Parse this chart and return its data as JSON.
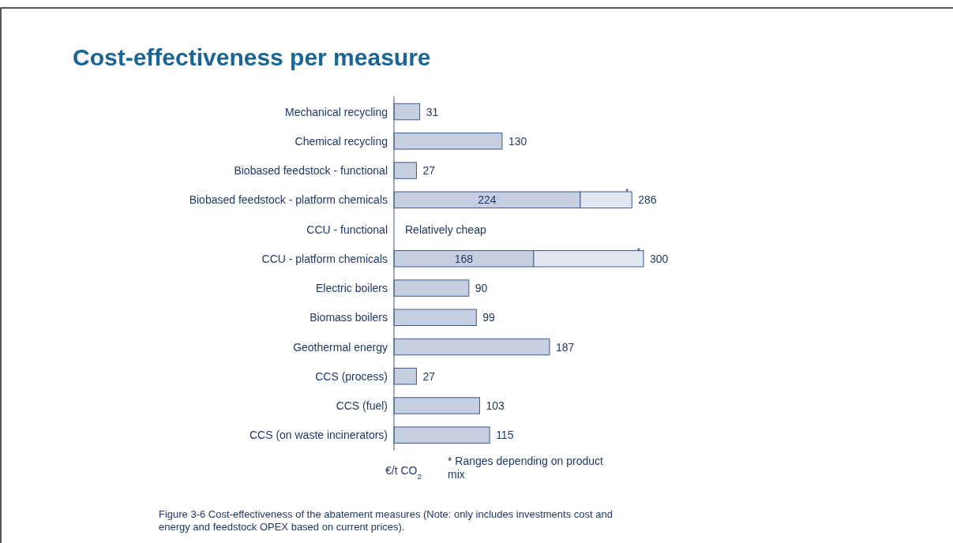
{
  "chart_data": {
    "type": "bar",
    "orientation": "horizontal",
    "stacked": true,
    "title": "Cost-effectiveness per measure",
    "xlabel": "€/t CO$_{2}$",
    "categories": [
      "Mechanical recycling",
      "Chemical recycling",
      "Biobased feedstock - functional",
      "Biobased feedstock - platform chemicals",
      "CCU - functional",
      "CCU - platform chemicals",
      "Electric boilers",
      "Biomass boilers",
      "Geothermal energy",
      "CCS (process)",
      "CCS (fuel)",
      "CCS (on waste incinerators)"
    ],
    "series": [
      {
        "color": "#c6cfe2",
        "values": [
          31,
          130,
          27,
          224,
          null,
          168,
          90,
          99,
          187,
          27,
          103,
          115
        ],
        "value_labels": [
          null,
          null,
          null,
          "224",
          null,
          "168",
          null,
          null,
          null,
          null,
          null,
          null
        ]
      },
      {
        "color": "#e1e6f1",
        "values": [
          null,
          null,
          null,
          62,
          null,
          132,
          null,
          null,
          null,
          null,
          null,
          null
        ],
        "value_labels": [
          null,
          null,
          null,
          "*",
          null,
          "*",
          null,
          null,
          null,
          null,
          null,
          null
        ]
      }
    ],
    "totals": [
      "31",
      "130",
      "27",
      "286",
      null,
      "300",
      "90",
      "99",
      "187",
      "27",
      "103",
      "115"
    ],
    "annotations": [
      "Relatively cheap",
      "* Ranges depending on product mix",
      "Figure 3-6 Cost-effectiveness of the abatement measures (Note: only includes investments cost and energy and feedstock OPEX based on current prices)."
    ]
  }
}
